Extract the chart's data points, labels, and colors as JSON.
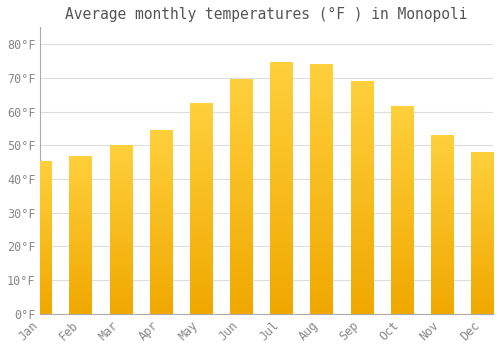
{
  "months": [
    "Jan",
    "Feb",
    "Mar",
    "Apr",
    "May",
    "Jun",
    "Jul",
    "Aug",
    "Sep",
    "Oct",
    "Nov",
    "Dec"
  ],
  "values": [
    45.3,
    46.6,
    50.0,
    54.5,
    62.5,
    69.6,
    74.5,
    74.0,
    69.0,
    61.5,
    53.0,
    48.0
  ],
  "title": "Average monthly temperatures (°F ) in Monopoli",
  "ylim": [
    0,
    85
  ],
  "yticks": [
    0,
    10,
    20,
    30,
    40,
    50,
    60,
    70,
    80
  ],
  "ytick_labels": [
    "0°F",
    "10°F",
    "20°F",
    "30°F",
    "40°F",
    "50°F",
    "60°F",
    "70°F",
    "80°F"
  ],
  "background_color": "#FFFFFF",
  "grid_color": "#DDDDDD",
  "title_fontsize": 10.5,
  "tick_fontsize": 8.5,
  "bar_color_bottom": "#F0A800",
  "bar_color_top": "#FFD050",
  "bar_width": 0.55
}
